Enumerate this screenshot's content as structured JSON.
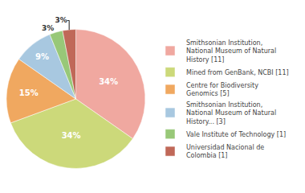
{
  "chart_data": {
    "type": "pie",
    "categories": [
      "Smithsonian Institution,\nNational Museum of Natural\nHistory [11]",
      "Mined from GenBank, NCBI [11]",
      "Centre for Biodiversity\nGenomics [5]",
      "Smithsonian Institution,\nNational Museum of Natural\nHistory... [3]",
      "Vale Institute of Technology [1]",
      "Universidad Nacional de\nColombia [1]"
    ],
    "values": [
      34,
      34,
      15,
      9,
      3,
      3
    ],
    "value_labels": [
      "34%",
      "34%",
      "15%",
      "9%",
      "3%",
      "3%"
    ],
    "data_labels": true,
    "colors": [
      "#f0a8a0",
      "#ccd97a",
      "#f0a860",
      "#a8c8e0",
      "#98c878",
      "#c06858"
    ],
    "legend": "right"
  }
}
